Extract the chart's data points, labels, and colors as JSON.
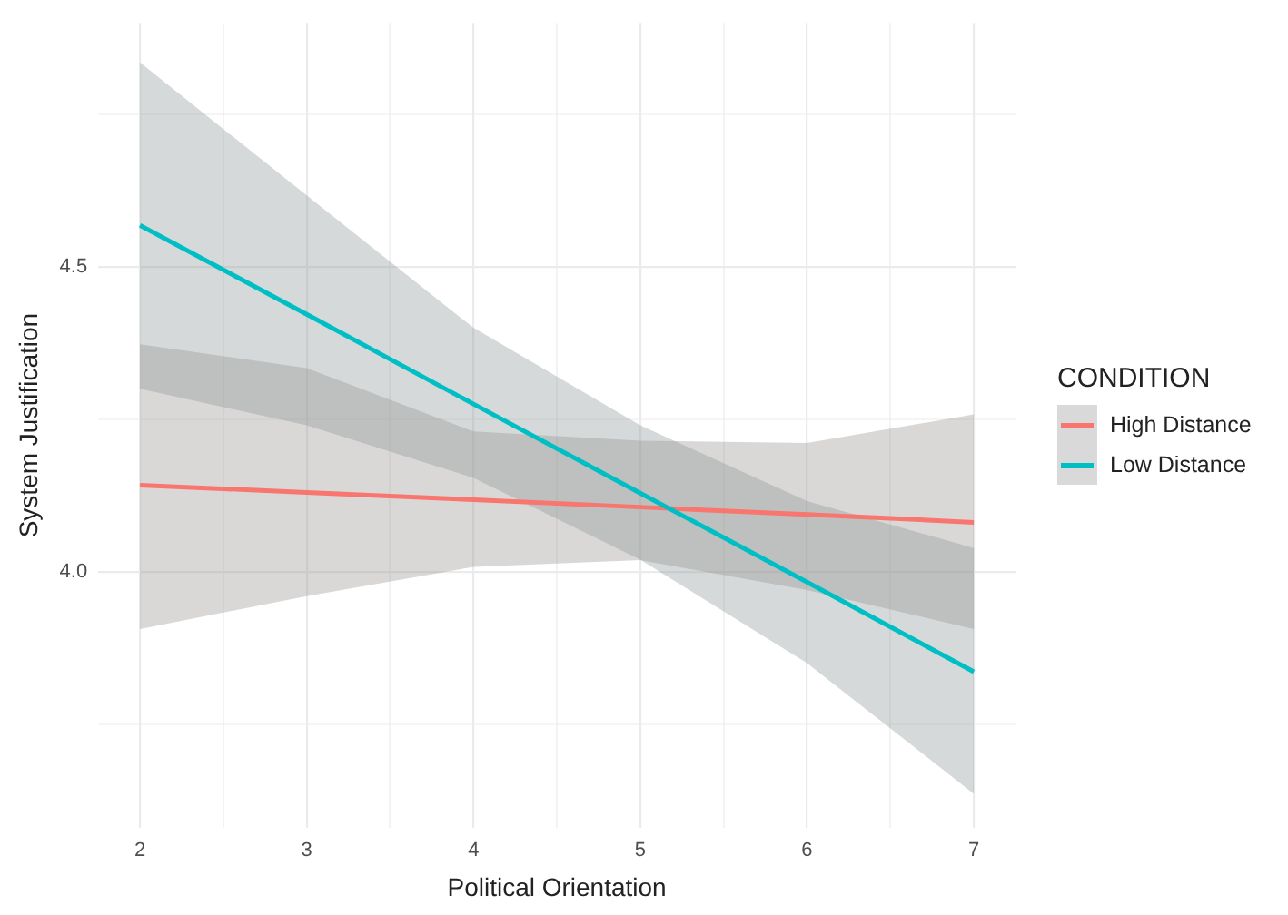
{
  "chart_data": {
    "type": "line",
    "xlabel": "Political Orientation",
    "ylabel": "System Justification",
    "legend_title": "CONDITION",
    "legend": "right",
    "grid": true,
    "marker": "none",
    "line_style": "solid",
    "xlim": [
      1.75,
      7.25
    ],
    "xticks": [
      2,
      {
        "value": 2.5,
        "label": null
      },
      3,
      {
        "value": 3.5,
        "label": null
      },
      4,
      {
        "value": 4.5,
        "label": null
      },
      5,
      {
        "value": 5.5,
        "label": null
      },
      6,
      {
        "value": 6.5,
        "label": null
      },
      7
    ],
    "ylim": [
      3.58,
      4.9
    ],
    "yticks": [
      {
        "value": 3.75,
        "label": null
      },
      {
        "value": 4,
        "label": "4.0"
      },
      {
        "value": 4.25,
        "label": null
      },
      {
        "value": 4.5,
        "label": "4.5"
      },
      {
        "value": 4.75,
        "label": null
      }
    ],
    "x": [
      2,
      3,
      4,
      5,
      6,
      7
    ],
    "series": [
      {
        "name": "High Distance",
        "color": "#f8766d",
        "values": [
          4.142,
          4.13,
          4.118,
          4.106,
          4.094,
          4.081
        ],
        "lower": [
          3.906,
          3.96,
          4.008,
          4.019,
          3.97,
          3.906
        ],
        "upper": [
          4.373,
          4.334,
          4.23,
          4.215,
          4.211,
          4.258
        ]
      },
      {
        "name": "Low Distance",
        "color": "#00bfc4",
        "values": [
          4.568,
          4.422,
          4.275,
          4.129,
          3.983,
          3.836
        ],
        "lower": [
          4.3,
          4.24,
          4.154,
          4.02,
          3.85,
          3.636
        ],
        "upper": [
          4.835,
          4.617,
          4.4,
          4.24,
          4.116,
          4.039
        ]
      }
    ]
  }
}
